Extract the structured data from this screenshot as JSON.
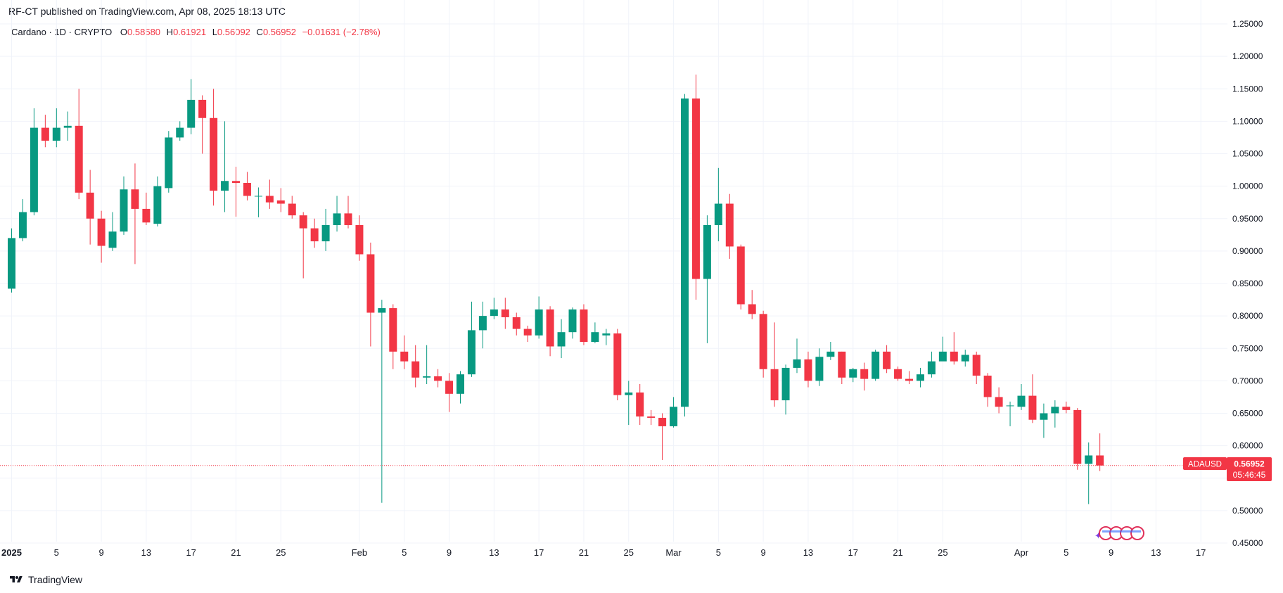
{
  "header": {
    "published": "RF-CT published on TradingView.com, Apr 08, 2025 18:13 UTC"
  },
  "legend": {
    "symbol": "Cardano · 1D · CRYPTO",
    "o_label": "O",
    "o_value": "0.58580",
    "h_label": "H",
    "h_value": "0.61921",
    "l_label": "L",
    "l_value": "0.56092",
    "c_label": "C",
    "c_value": "0.56952",
    "change": "−0.01631 (−2.78%)"
  },
  "price_tag": {
    "ticker": "ADAUSD",
    "price": "0.56952",
    "countdown": "05:46:45"
  },
  "footer": {
    "brand": "TradingView"
  },
  "colors": {
    "up": "#089981",
    "down": "#f23645",
    "grid": "#f0f3fa",
    "text": "#131722"
  },
  "chart_data": {
    "type": "candlestick",
    "title": "",
    "xlabel": "",
    "ylabel": "",
    "ylim": [
      0.45,
      1.25
    ],
    "grid": true,
    "y_ticks": [
      "1.25000",
      "1.20000",
      "1.15000",
      "1.10000",
      "1.05000",
      "1.00000",
      "0.95000",
      "0.90000",
      "0.85000",
      "0.80000",
      "0.75000",
      "0.70000",
      "0.65000",
      "0.60000",
      "0.55000",
      "0.50000",
      "0.45000"
    ],
    "x_ticks": [
      {
        "label": "2025",
        "index": 0
      },
      {
        "label": "5",
        "index": 4
      },
      {
        "label": "9",
        "index": 8
      },
      {
        "label": "13",
        "index": 12
      },
      {
        "label": "17",
        "index": 16
      },
      {
        "label": "21",
        "index": 20
      },
      {
        "label": "25",
        "index": 24
      },
      {
        "label": "Feb",
        "index": 31
      },
      {
        "label": "5",
        "index": 35
      },
      {
        "label": "9",
        "index": 39
      },
      {
        "label": "13",
        "index": 43
      },
      {
        "label": "17",
        "index": 47
      },
      {
        "label": "21",
        "index": 51
      },
      {
        "label": "25",
        "index": 55
      },
      {
        "label": "Mar",
        "index": 59
      },
      {
        "label": "5",
        "index": 63
      },
      {
        "label": "9",
        "index": 67
      },
      {
        "label": "13",
        "index": 71
      },
      {
        "label": "17",
        "index": 75
      },
      {
        "label": "21",
        "index": 79
      },
      {
        "label": "25",
        "index": 83
      },
      {
        "label": "Apr",
        "index": 90
      },
      {
        "label": "5",
        "index": 94
      },
      {
        "label": "9",
        "index": 98
      },
      {
        "label": "13",
        "index": 102
      },
      {
        "label": "17",
        "index": 106
      }
    ],
    "current_price": 0.56952,
    "candles": [
      [
        0.842,
        0.92,
        0.935,
        0.836
      ],
      [
        0.92,
        0.96,
        0.98,
        0.915
      ],
      [
        0.96,
        1.09,
        1.12,
        0.955
      ],
      [
        1.09,
        1.07,
        1.11,
        1.06
      ],
      [
        1.07,
        1.09,
        1.12,
        1.06
      ],
      [
        1.09,
        1.093,
        1.115,
        1.07
      ],
      [
        1.093,
        0.99,
        1.15,
        0.98
      ],
      [
        0.99,
        0.95,
        1.025,
        0.91
      ],
      [
        0.95,
        0.908,
        0.962,
        0.882
      ],
      [
        0.905,
        0.93,
        0.96,
        0.9
      ],
      [
        0.93,
        0.995,
        1.015,
        0.925
      ],
      [
        0.995,
        0.965,
        1.035,
        0.88
      ],
      [
        0.965,
        0.944,
        0.99,
        0.94
      ],
      [
        0.942,
        1.0,
        1.015,
        0.938
      ],
      [
        0.997,
        1.075,
        1.085,
        0.99
      ],
      [
        1.075,
        1.09,
        1.1,
        1.07
      ],
      [
        1.09,
        1.133,
        1.165,
        1.08
      ],
      [
        1.133,
        1.105,
        1.14,
        1.05
      ],
      [
        1.105,
        0.993,
        1.15,
        0.97
      ],
      [
        0.993,
        1.008,
        1.1,
        0.96
      ],
      [
        1.008,
        1.005,
        1.03,
        0.953
      ],
      [
        1.005,
        0.985,
        1.022,
        0.978
      ],
      [
        0.985,
        0.985,
        0.998,
        0.952
      ],
      [
        0.985,
        0.975,
        1.01,
        0.965
      ],
      [
        0.978,
        0.973,
        0.997,
        0.96
      ],
      [
        0.973,
        0.955,
        0.985,
        0.95
      ],
      [
        0.955,
        0.935,
        0.96,
        0.858
      ],
      [
        0.935,
        0.915,
        0.95,
        0.905
      ],
      [
        0.915,
        0.94,
        0.965,
        0.9
      ],
      [
        0.94,
        0.958,
        0.985,
        0.93
      ],
      [
        0.958,
        0.94,
        0.985,
        0.935
      ],
      [
        0.94,
        0.895,
        0.955,
        0.885
      ],
      [
        0.895,
        0.805,
        0.913,
        0.753
      ],
      [
        0.805,
        0.812,
        0.825,
        0.512
      ],
      [
        0.812,
        0.745,
        0.818,
        0.718
      ],
      [
        0.745,
        0.73,
        0.77,
        0.718
      ],
      [
        0.73,
        0.705,
        0.755,
        0.69
      ],
      [
        0.705,
        0.707,
        0.755,
        0.695
      ],
      [
        0.707,
        0.7,
        0.718,
        0.69
      ],
      [
        0.7,
        0.68,
        0.712,
        0.652
      ],
      [
        0.68,
        0.71,
        0.715,
        0.665
      ],
      [
        0.71,
        0.778,
        0.822,
        0.706
      ],
      [
        0.778,
        0.8,
        0.822,
        0.75
      ],
      [
        0.8,
        0.81,
        0.828,
        0.795
      ],
      [
        0.81,
        0.798,
        0.828,
        0.78
      ],
      [
        0.798,
        0.78,
        0.805,
        0.77
      ],
      [
        0.78,
        0.77,
        0.785,
        0.76
      ],
      [
        0.77,
        0.81,
        0.83,
        0.765
      ],
      [
        0.81,
        0.753,
        0.815,
        0.738
      ],
      [
        0.753,
        0.775,
        0.795,
        0.735
      ],
      [
        0.775,
        0.81,
        0.813,
        0.765
      ],
      [
        0.81,
        0.76,
        0.818,
        0.755
      ],
      [
        0.76,
        0.775,
        0.79,
        0.758
      ],
      [
        0.77,
        0.773,
        0.78,
        0.755
      ],
      [
        0.773,
        0.678,
        0.78,
        0.67
      ],
      [
        0.678,
        0.682,
        0.7,
        0.632
      ],
      [
        0.682,
        0.645,
        0.695,
        0.632
      ],
      [
        0.645,
        0.643,
        0.655,
        0.632
      ],
      [
        0.643,
        0.63,
        0.65,
        0.578
      ],
      [
        0.63,
        0.66,
        0.675,
        0.628
      ],
      [
        0.66,
        1.135,
        1.142,
        0.645
      ],
      [
        1.135,
        0.857,
        1.172,
        0.825
      ],
      [
        0.857,
        0.94,
        0.955,
        0.758
      ],
      [
        0.94,
        0.973,
        1.028,
        0.915
      ],
      [
        0.973,
        0.907,
        0.988,
        0.888
      ],
      [
        0.907,
        0.818,
        0.91,
        0.81
      ],
      [
        0.818,
        0.803,
        0.84,
        0.795
      ],
      [
        0.803,
        0.718,
        0.808,
        0.705
      ],
      [
        0.718,
        0.67,
        0.79,
        0.66
      ],
      [
        0.67,
        0.72,
        0.725,
        0.648
      ],
      [
        0.72,
        0.733,
        0.765,
        0.712
      ],
      [
        0.733,
        0.7,
        0.745,
        0.69
      ],
      [
        0.7,
        0.737,
        0.75,
        0.692
      ],
      [
        0.737,
        0.745,
        0.76,
        0.732
      ],
      [
        0.745,
        0.705,
        0.745,
        0.695
      ],
      [
        0.705,
        0.718,
        0.72,
        0.698
      ],
      [
        0.718,
        0.703,
        0.728,
        0.685
      ],
      [
        0.703,
        0.745,
        0.748,
        0.7
      ],
      [
        0.745,
        0.718,
        0.755,
        0.712
      ],
      [
        0.718,
        0.703,
        0.722,
        0.7
      ],
      [
        0.703,
        0.7,
        0.715,
        0.695
      ],
      [
        0.7,
        0.71,
        0.72,
        0.69
      ],
      [
        0.71,
        0.73,
        0.745,
        0.705
      ],
      [
        0.73,
        0.745,
        0.768,
        0.738
      ],
      [
        0.745,
        0.73,
        0.775,
        0.725
      ],
      [
        0.73,
        0.74,
        0.748,
        0.722
      ],
      [
        0.74,
        0.708,
        0.745,
        0.695
      ],
      [
        0.708,
        0.675,
        0.712,
        0.66
      ],
      [
        0.675,
        0.66,
        0.69,
        0.65
      ],
      [
        0.662,
        0.662,
        0.668,
        0.63
      ],
      [
        0.66,
        0.677,
        0.695,
        0.655
      ],
      [
        0.677,
        0.64,
        0.71,
        0.635
      ],
      [
        0.64,
        0.65,
        0.665,
        0.612
      ],
      [
        0.65,
        0.66,
        0.67,
        0.628
      ],
      [
        0.66,
        0.655,
        0.668,
        0.65
      ],
      [
        0.655,
        0.572,
        0.658,
        0.563
      ],
      [
        0.572,
        0.585,
        0.605,
        0.51
      ],
      [
        0.585,
        0.5695,
        0.619,
        0.561
      ]
    ],
    "candle_fields": [
      "open",
      "close",
      "high",
      "low"
    ]
  }
}
